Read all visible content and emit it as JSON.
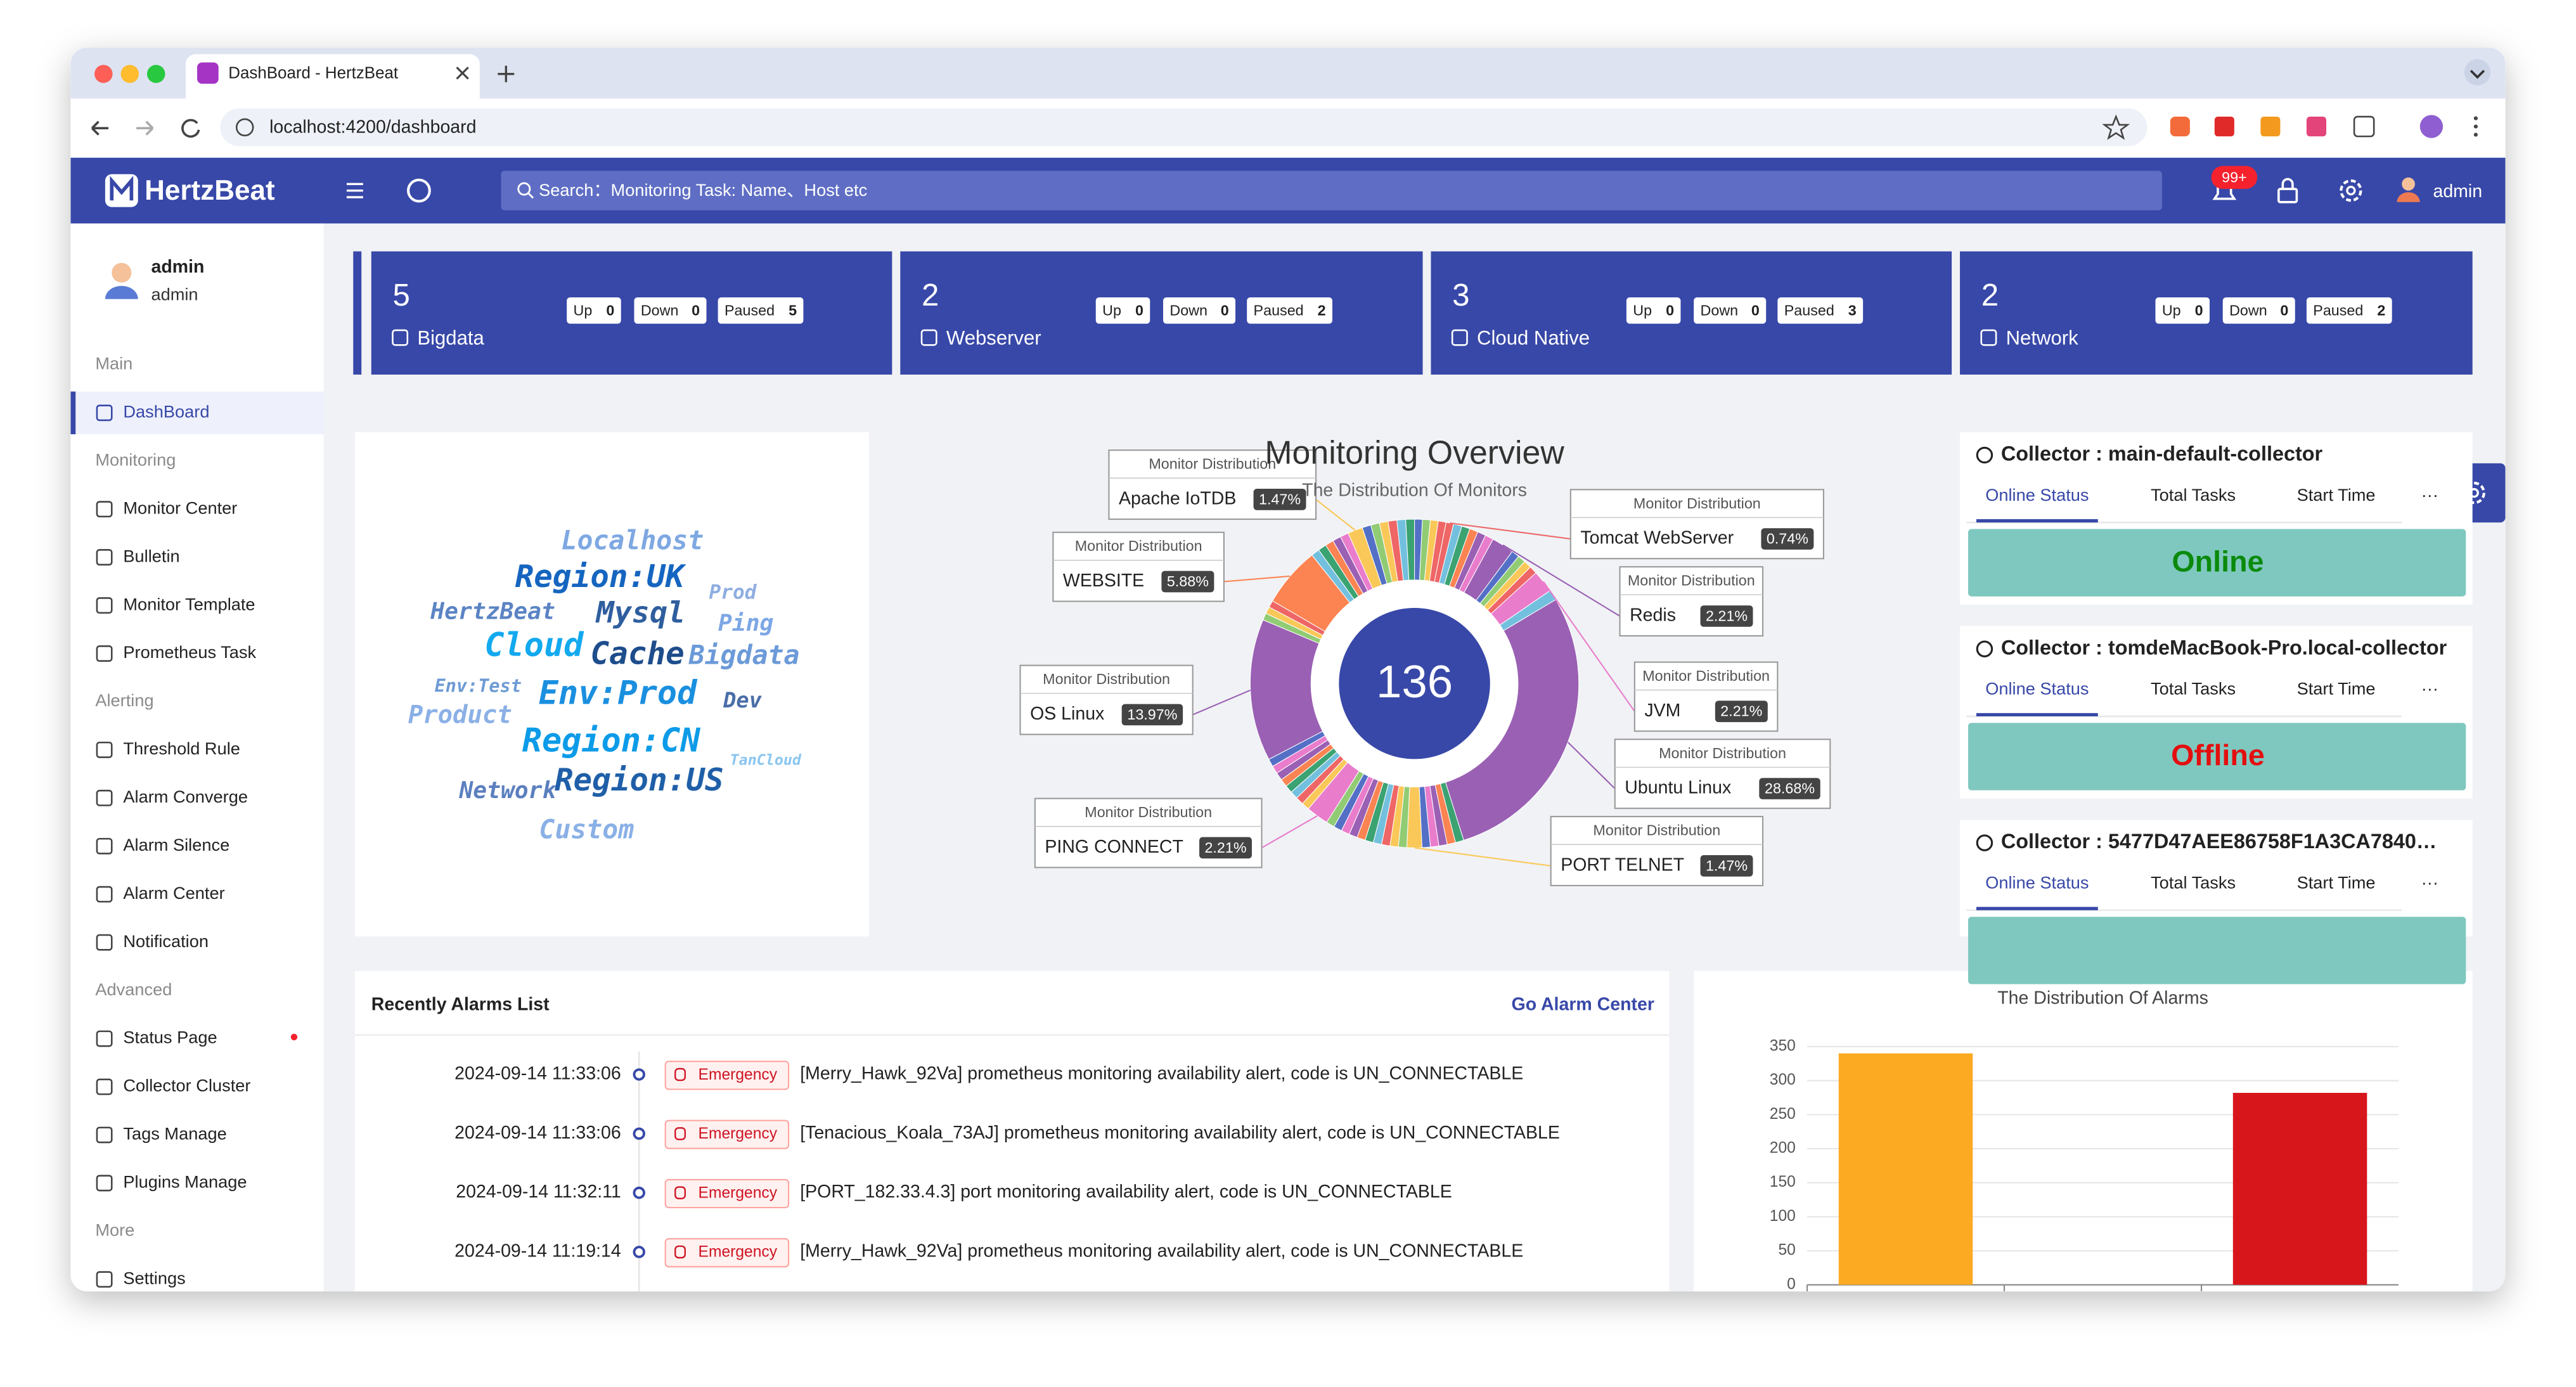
{
  "browser": {
    "tab_title": "DashBoard - HertzBeat",
    "url": "localhost:4200/dashboard"
  },
  "header": {
    "logo": "HertzBeat",
    "search": "Search：Monitoring Task: Name、Host etc",
    "notification_badge": "99+",
    "user": "admin"
  },
  "sidebar": {
    "user": {
      "name": "admin",
      "role": "admin"
    },
    "groups": [
      {
        "title": "Main",
        "items": [
          "DashBoard"
        ]
      },
      {
        "title": "Monitoring",
        "items": [
          "Monitor Center",
          "Bulletin",
          "Monitor Template",
          "Prometheus Task"
        ]
      },
      {
        "title": "Alerting",
        "items": [
          "Threshold Rule",
          "Alarm Converge",
          "Alarm Silence",
          "Alarm Center",
          "Notification"
        ]
      },
      {
        "title": "Advanced",
        "items": [
          "Status Page",
          "Collector Cluster",
          "Tags Manage",
          "Plugins Manage"
        ]
      },
      {
        "title": "More",
        "items": [
          "Settings"
        ]
      }
    ]
  },
  "monitor_cards": [
    {
      "count": 5,
      "name": "Bigdata",
      "stats": [
        {
          "label": "Up",
          "value": 0
        },
        {
          "label": "Down",
          "value": 0
        },
        {
          "label": "Paused",
          "value": 5
        }
      ]
    },
    {
      "count": 2,
      "name": "Webserver",
      "stats": [
        {
          "label": "Up",
          "value": 0
        },
        {
          "label": "Down",
          "value": 0
        },
        {
          "label": "Paused",
          "value": 2
        }
      ]
    },
    {
      "count": 3,
      "name": "Cloud Native",
      "stats": [
        {
          "label": "Up",
          "value": 0
        },
        {
          "label": "Down",
          "value": 0
        },
        {
          "label": "Paused",
          "value": 3
        }
      ]
    },
    {
      "count": 2,
      "name": "Network",
      "stats": [
        {
          "label": "Up",
          "value": 0
        },
        {
          "label": "Down",
          "value": 0
        },
        {
          "label": "Paused",
          "value": 2
        }
      ]
    }
  ],
  "tag_cloud": [
    "Localhost",
    "Region:UK",
    "Prod",
    "HertzBeat",
    "Mysql",
    "Ping",
    "Cloud",
    "Cache",
    "Bigdata",
    "Env:Test",
    "Env:Prod",
    "Product",
    "Dev",
    "Region:CN",
    "TanCloud",
    "Network",
    "Region:US",
    "Custom"
  ],
  "monitor_overview": {
    "type": "pie",
    "title": "Monitoring Overview",
    "subtitle": "The Distribution Of Monitors",
    "total": 136,
    "tooltip_title": "Monitor Distribution",
    "categories": [
      "Tomcat WebServer",
      "Redis",
      "JVM",
      "Ubuntu Linux",
      "PORT TELNET",
      "PING CONNECT",
      "OS Linux",
      "WEBSITE",
      "Apache IoTDB"
    ],
    "values": [
      0.74,
      2.21,
      2.21,
      28.68,
      1.47,
      2.21,
      13.97,
      5.88,
      1.47
    ],
    "value_labels": [
      "0.74%",
      "2.21%",
      "2.21%",
      "28.68%",
      "1.47%",
      "2.21%",
      "13.97%",
      "5.88%",
      "1.47%"
    ],
    "colors": [
      "#ee6666",
      "#9a60b4",
      "#ea7ccc",
      "#9a60b4",
      "#fac858",
      "#ea7ccc",
      "#9a60b4",
      "#fc8452",
      "#fac858"
    ]
  },
  "collectors": {
    "tabs": [
      "Online Status",
      "Total Tasks",
      "Start Time",
      "···"
    ],
    "items": [
      {
        "title": "Collector : main-default-collector",
        "status": "Online"
      },
      {
        "title": "Collector : tomdeMacBook-Pro.local-collector",
        "status": "Offline"
      },
      {
        "title": "Collector : 5477D47AEE86758F1A3CA7840…"
      }
    ]
  },
  "alarms": {
    "title": "Recently Alarms List",
    "link": "Go Alarm Center",
    "rows": [
      {
        "time": "2024-09-14 11:33:06",
        "level": "Emergency",
        "message": "[Merry_Hawk_92Va] prometheus monitoring availability alert, code is UN_CONNECTABLE"
      },
      {
        "time": "2024-09-14 11:33:06",
        "level": "Emergency",
        "message": "[Tenacious_Koala_73AJ] prometheus monitoring availability alert, code is UN_CONNECTABLE"
      },
      {
        "time": "2024-09-14 11:32:11",
        "level": "Emergency",
        "message": "[PORT_182.33.4.3] port monitoring availability alert, code is UN_CONNECTABLE"
      },
      {
        "time": "2024-09-14 11:19:14",
        "level": "Emergency",
        "message": "[Merry_Hawk_92Va] prometheus monitoring availability alert, code is UN_CONNECTABLE"
      }
    ]
  },
  "alarm_distribution": {
    "type": "bar",
    "title": "The Distribution Of Alarms",
    "categories": [
      null,
      null,
      null
    ],
    "values": [
      340,
      0,
      282
    ],
    "colors": [
      "#fbaa22",
      "#3f51b5",
      "#d7161b"
    ],
    "ylim": [
      0,
      350
    ],
    "yticks": [
      0,
      50,
      100,
      150,
      200,
      250,
      300,
      350
    ],
    "grid": true
  }
}
